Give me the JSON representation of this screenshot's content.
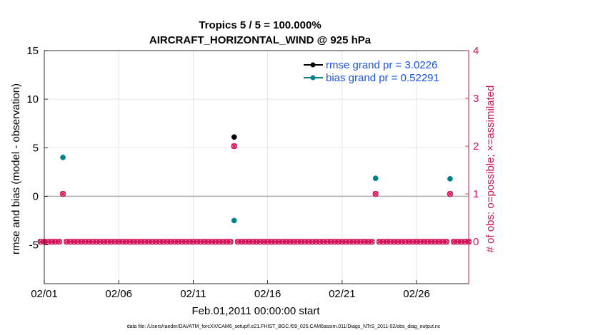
{
  "chart_data": {
    "type": "line",
    "title_line1": "Tropics 5 / 5 = 100.000%",
    "title_line2": "AIRCRAFT_HORIZONTAL_WIND @ 925 hPa",
    "xlabel": "Feb.01,2011 00:00:00 start",
    "ylabel_left": "rmse and bias (model - observation)",
    "ylabel_right": "# of obs: o=possible; ×=assimilated",
    "xlim": [
      0,
      28.5
    ],
    "ylim_left": [
      -9,
      15
    ],
    "ylim_right": [
      -0.88,
      4
    ],
    "x_tick_values": [
      0,
      5,
      10,
      15,
      20,
      25
    ],
    "x_tick_labels": [
      "02/01",
      "02/06",
      "02/11",
      "02/16",
      "02/21",
      "02/26"
    ],
    "y_left_ticks": [
      -5,
      0,
      5,
      10,
      15
    ],
    "y_left_tick_labels": [
      "-5",
      "0",
      "5",
      "10",
      "15"
    ],
    "y_right_ticks": [
      0,
      1,
      2,
      3,
      4
    ],
    "y_right_tick_labels": [
      "0",
      "1",
      "2",
      "3",
      "4"
    ],
    "grid": true,
    "zero_line_y": 0,
    "series": [
      {
        "name": "rmse",
        "legend_label": "rmse grand pr = 3.0226",
        "color": "#000000",
        "axis": "left",
        "points": [
          [
            12.75,
            6.1
          ]
        ]
      },
      {
        "name": "bias",
        "legend_label": "bias grand pr = 0.52291",
        "color": "#00808a",
        "axis": "left",
        "points": [
          [
            1.25,
            4.0
          ],
          [
            12.75,
            -2.5
          ],
          [
            22.25,
            1.85
          ],
          [
            27.25,
            1.8
          ]
        ]
      },
      {
        "name": "obs_possible",
        "color": "#d4145a",
        "axis": "right",
        "marker": "o",
        "start": -0.25,
        "step": 0.25,
        "default": 0,
        "overrides": [
          [
            1.25,
            1
          ],
          [
            12.75,
            2
          ],
          [
            22.25,
            1
          ],
          [
            27.25,
            1
          ]
        ]
      },
      {
        "name": "obs_assimilated",
        "color": "#d4145a",
        "axis": "right",
        "marker": "x",
        "start": -0.25,
        "step": 0.25,
        "default": 0,
        "overrides": [
          [
            1.25,
            1
          ],
          [
            12.75,
            2
          ],
          [
            22.25,
            1
          ],
          [
            27.25,
            1
          ]
        ]
      }
    ],
    "legend_position": "top-right"
  },
  "footnote": "data file: /Users/raeder/DAI/ATM_forcXX/CAM6_setup/f.e21.FHIST_BGC.f09_025.CAM6assim.011/Diags_NTrS_2011-02/obs_diag_output.nc",
  "colors": {
    "left_axis": "#000000",
    "right_axis": "#d4145a",
    "grid": "#dcdcdc",
    "zero_line": "#b0b0b0",
    "legend_text": "#1a52e6"
  }
}
